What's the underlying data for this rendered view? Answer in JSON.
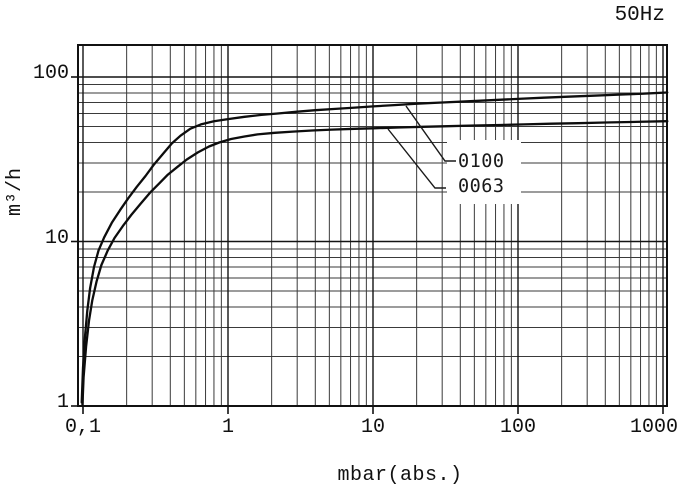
{
  "colors": {
    "background": "#ffffff",
    "grid_minor": "#3a3a3a",
    "grid_major": "#141414",
    "frame": "#111111",
    "curve": "#0d0d0d",
    "leader": "#1a1a1a",
    "text": "#111111"
  },
  "chart_data": {
    "type": "line",
    "x_scale": "log",
    "y_scale": "log",
    "corner_label": "50Hz",
    "xlabel": "mbar(abs.)",
    "ylabel": "m³/h",
    "xlim": [
      0.092,
      1070
    ],
    "ylim": [
      1,
      157
    ],
    "grid": "full log grid (major decades + minor 2-9 subdivisions), both axes; no y minors above 100",
    "legend_position": "inside right-center with leader lines to curves",
    "x_ticks": [
      {
        "value": 0.1,
        "label": "0,1"
      },
      {
        "value": 1,
        "label": "1"
      },
      {
        "value": 10,
        "label": "10"
      },
      {
        "value": 100,
        "label": "100"
      },
      {
        "value": 1000,
        "label": "1000"
      }
    ],
    "y_ticks": [
      {
        "value": 1,
        "label": "1"
      },
      {
        "value": 10,
        "label": "10"
      },
      {
        "value": 100,
        "label": "100"
      }
    ],
    "series": [
      {
        "name": "0100",
        "points": [
          [
            0.098,
            1.05
          ],
          [
            0.1,
            1.7
          ],
          [
            0.103,
            2.6
          ],
          [
            0.107,
            3.8
          ],
          [
            0.112,
            5.2
          ],
          [
            0.119,
            7.0
          ],
          [
            0.128,
            8.8
          ],
          [
            0.14,
            10.6
          ],
          [
            0.158,
            13.0
          ],
          [
            0.18,
            15.5
          ],
          [
            0.205,
            18.3
          ],
          [
            0.235,
            21.5
          ],
          [
            0.27,
            25.0
          ],
          [
            0.31,
            29.5
          ],
          [
            0.36,
            34.5
          ],
          [
            0.41,
            39.5
          ],
          [
            0.47,
            44.0
          ],
          [
            0.55,
            48.5
          ],
          [
            0.65,
            51.5
          ],
          [
            0.8,
            53.8
          ],
          [
            1.0,
            55.5
          ],
          [
            1.3,
            57.3
          ],
          [
            1.7,
            58.8
          ],
          [
            2.2,
            60.0
          ],
          [
            3.0,
            61.5
          ],
          [
            4.0,
            62.8
          ],
          [
            5.5,
            64.0
          ],
          [
            7.5,
            65.2
          ],
          [
            10,
            66.3
          ],
          [
            14,
            67.5
          ],
          [
            20,
            68.8
          ],
          [
            30,
            70.0
          ],
          [
            45,
            71.2
          ],
          [
            65,
            72.3
          ],
          [
            100,
            73.6
          ],
          [
            150,
            74.8
          ],
          [
            220,
            75.9
          ],
          [
            330,
            77.0
          ],
          [
            500,
            78.2
          ],
          [
            720,
            79.1
          ],
          [
            1070,
            80.5
          ]
        ]
      },
      {
        "name": "0063",
        "points": [
          [
            0.099,
            1.0
          ],
          [
            0.101,
            1.5
          ],
          [
            0.105,
            2.3
          ],
          [
            0.11,
            3.3
          ],
          [
            0.116,
            4.4
          ],
          [
            0.124,
            5.7
          ],
          [
            0.134,
            7.2
          ],
          [
            0.148,
            8.8
          ],
          [
            0.165,
            10.5
          ],
          [
            0.188,
            12.4
          ],
          [
            0.215,
            14.5
          ],
          [
            0.25,
            17.0
          ],
          [
            0.29,
            19.8
          ],
          [
            0.335,
            22.5
          ],
          [
            0.385,
            25.5
          ],
          [
            0.45,
            28.5
          ],
          [
            0.52,
            31.5
          ],
          [
            0.62,
            34.8
          ],
          [
            0.74,
            37.8
          ],
          [
            0.87,
            40.0
          ],
          [
            1.05,
            42.0
          ],
          [
            1.3,
            43.5
          ],
          [
            1.6,
            44.8
          ],
          [
            2.1,
            45.8
          ],
          [
            2.8,
            46.6
          ],
          [
            3.8,
            47.3
          ],
          [
            5.2,
            47.9
          ],
          [
            7.5,
            48.4
          ],
          [
            10,
            48.8
          ],
          [
            15,
            49.3
          ],
          [
            22,
            49.8
          ],
          [
            33,
            50.2
          ],
          [
            50,
            50.7
          ],
          [
            75,
            51.1
          ],
          [
            110,
            51.5
          ],
          [
            170,
            52.0
          ],
          [
            260,
            52.4
          ],
          [
            400,
            52.9
          ],
          [
            600,
            53.3
          ],
          [
            1070,
            53.9
          ]
        ]
      }
    ]
  }
}
